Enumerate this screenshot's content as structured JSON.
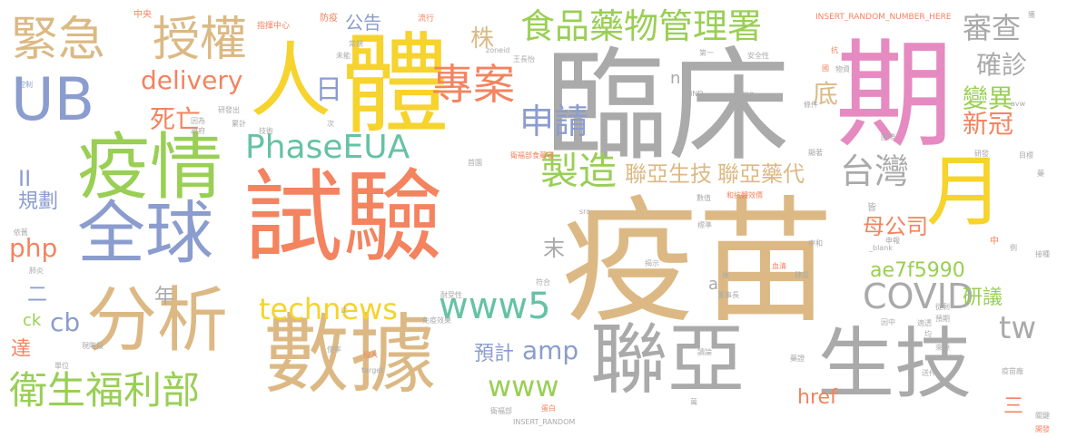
{
  "palette": {
    "tan": "#dcb984",
    "gray": "#aaaaaa",
    "yellow": "#f6d32d",
    "pink": "#e58bc1",
    "orange": "#f4835f",
    "green": "#99cf54",
    "blue": "#8b9dce",
    "teal": "#66c2a5"
  },
  "words": [
    {
      "text": "疫苗",
      "color": "tan"
    },
    {
      "text": "臨床",
      "color": "gray"
    },
    {
      "text": "試驗",
      "color": "orange"
    },
    {
      "text": "期",
      "color": "pink"
    },
    {
      "text": "體",
      "color": "yellow"
    },
    {
      "text": "人",
      "color": "yellow"
    },
    {
      "text": "數據",
      "color": "tan"
    },
    {
      "text": "聯亞",
      "color": "gray"
    },
    {
      "text": "生技",
      "color": "gray"
    },
    {
      "text": "疫情",
      "color": "green"
    },
    {
      "text": "全球",
      "color": "blue"
    },
    {
      "text": "分析",
      "color": "tan"
    },
    {
      "text": "UB",
      "color": "blue"
    },
    {
      "text": "緊急",
      "color": "tan"
    },
    {
      "text": "授權",
      "color": "tan"
    },
    {
      "text": "月",
      "color": "yellow"
    },
    {
      "text": "食品藥物管理署",
      "color": "green"
    },
    {
      "text": "衛生福利部",
      "color": "green"
    },
    {
      "text": "PhaseEUA",
      "color": "teal"
    },
    {
      "text": "專案",
      "color": "orange"
    },
    {
      "text": "製造",
      "color": "green"
    },
    {
      "text": "台灣",
      "color": "gray"
    },
    {
      "text": "COVID",
      "color": "gray"
    },
    {
      "text": "www5",
      "color": "teal"
    },
    {
      "text": "technews",
      "color": "yellow"
    },
    {
      "text": "delivery",
      "color": "orange"
    },
    {
      "text": "申請",
      "color": "blue"
    },
    {
      "text": "www",
      "color": "green"
    },
    {
      "text": "amp",
      "color": "blue"
    },
    {
      "text": "聯亞生技",
      "color": "tan"
    },
    {
      "text": "聯亞藥代",
      "color": "tan"
    },
    {
      "text": "審查",
      "color": "gray"
    },
    {
      "text": "確診",
      "color": "gray"
    },
    {
      "text": "變異",
      "color": "green"
    },
    {
      "text": "新冠",
      "color": "orange"
    },
    {
      "text": "tw",
      "color": "gray"
    },
    {
      "text": "死亡",
      "color": "orange"
    },
    {
      "text": "日",
      "color": "blue"
    },
    {
      "text": "底",
      "color": "tan"
    },
    {
      "text": "株",
      "color": "tan"
    },
    {
      "text": "公告",
      "color": "blue"
    },
    {
      "text": "php",
      "color": "orange"
    },
    {
      "text": "cb",
      "color": "blue"
    },
    {
      "text": "規劃",
      "color": "blue"
    },
    {
      "text": "II",
      "color": "blue"
    },
    {
      "text": "母公司",
      "color": "orange"
    },
    {
      "text": "ae7f5990",
      "color": "green"
    },
    {
      "text": "研議",
      "color": "green"
    },
    {
      "text": "預計",
      "color": "blue"
    },
    {
      "text": "年",
      "color": "gray"
    },
    {
      "text": "末",
      "color": "gray"
    },
    {
      "text": "二",
      "color": "blue"
    },
    {
      "text": "達",
      "color": "orange"
    },
    {
      "text": "ck",
      "color": "green"
    },
    {
      "text": "href",
      "color": "orange"
    },
    {
      "text": "三",
      "color": "orange"
    },
    {
      "text": "a",
      "color": "gray"
    },
    {
      "text": "n",
      "color": "gray"
    },
    {
      "text": "中央",
      "color": "orange"
    },
    {
      "text": "指揮中心",
      "color": "orange"
    },
    {
      "text": "防疫",
      "color": "orange"
    },
    {
      "text": "流行",
      "color": "orange"
    },
    {
      "text": "INSERT_RANDOM_NUMBER_HERE",
      "color": "orange"
    },
    {
      "text": "控制",
      "color": "blue"
    },
    {
      "text": "研發出",
      "color": "gray"
    },
    {
      "text": "未能",
      "color": "gray"
    },
    {
      "text": "常規",
      "color": "gray"
    },
    {
      "text": "zoneid",
      "color": "gray"
    },
    {
      "text": "王長怡",
      "color": "gray"
    },
    {
      "text": "第一",
      "color": "gray"
    },
    {
      "text": "安全性",
      "color": "gray"
    },
    {
      "text": "抗",
      "color": "orange"
    },
    {
      "text": "國",
      "color": "orange"
    },
    {
      "text": "物資",
      "color": "gray"
    },
    {
      "text": "IND",
      "color": "gray"
    },
    {
      "text": "img",
      "color": "gray"
    },
    {
      "text": "條件",
      "color": "gray"
    },
    {
      "text": "累計",
      "color": "gray"
    },
    {
      "text": "技術",
      "color": "gray"
    },
    {
      "text": "因為",
      "color": "gray"
    },
    {
      "text": "政府",
      "color": "gray"
    },
    {
      "text": "次",
      "color": "gray"
    },
    {
      "text": "國際",
      "color": "gray"
    },
    {
      "text": "首園",
      "color": "gray"
    },
    {
      "text": "衛福部食藥署",
      "color": "orange"
    },
    {
      "text": "和抗體效價",
      "color": "orange"
    },
    {
      "text": "數值",
      "color": "gray"
    },
    {
      "text": "研發",
      "color": "gray"
    },
    {
      "text": "目標",
      "color": "gray"
    },
    {
      "text": "藥",
      "color": "gray"
    },
    {
      "text": "src",
      "color": "gray"
    },
    {
      "text": "依舊",
      "color": "gray"
    },
    {
      "text": "標準",
      "color": "gray"
    },
    {
      "text": "肺炎",
      "color": "gray"
    },
    {
      "text": "申報",
      "color": "gray"
    },
    {
      "text": "_blank",
      "color": "gray"
    },
    {
      "text": "例",
      "color": "gray"
    },
    {
      "text": "揭示",
      "color": "gray"
    },
    {
      "text": "血清",
      "color": "orange"
    },
    {
      "text": "肆虐",
      "color": "gray"
    },
    {
      "text": "後",
      "color": "gray"
    },
    {
      "text": "接種",
      "color": "gray"
    },
    {
      "text": "符合",
      "color": "gray"
    },
    {
      "text": "中和",
      "color": "gray"
    },
    {
      "text": "董事長",
      "color": "gray"
    },
    {
      "text": "耐受性",
      "color": "gray"
    },
    {
      "text": "止",
      "color": "gray"
    },
    {
      "text": "免疫效果",
      "color": "gray"
    },
    {
      "text": "從剩",
      "color": "gray"
    },
    {
      "text": "因中",
      "color": "gray"
    },
    {
      "text": "預期",
      "color": "gray"
    },
    {
      "text": "適透",
      "color": "gray"
    },
    {
      "text": "均",
      "color": "gray"
    },
    {
      "text": "現階段",
      "color": "gray"
    },
    {
      "text": "投入",
      "color": "orange"
    },
    {
      "text": "使率",
      "color": "gray"
    },
    {
      "text": "讀論",
      "color": "gray"
    },
    {
      "text": "來源",
      "color": "gray"
    },
    {
      "text": "單位",
      "color": "gray"
    },
    {
      "text": "target",
      "color": "gray"
    },
    {
      "text": "藥證",
      "color": "gray"
    },
    {
      "text": "送件",
      "color": "gray"
    },
    {
      "text": "疫苗廠",
      "color": "gray"
    },
    {
      "text": "萬",
      "color": "gray"
    },
    {
      "text": "蛋白",
      "color": "orange"
    },
    {
      "text": "衛福部",
      "color": "gray"
    },
    {
      "text": "INSERT_RANDOM",
      "color": "gray"
    },
    {
      "text": "關鍵",
      "color": "gray"
    },
    {
      "text": "開發",
      "color": "orange"
    },
    {
      "text": "中",
      "color": "orange"
    },
    {
      "text": "avw",
      "color": "gray"
    },
    {
      "text": "顯著",
      "color": "gray"
    },
    {
      "text": "皆",
      "color": "gray"
    },
    {
      "text": "獲",
      "color": "gray"
    }
  ]
}
